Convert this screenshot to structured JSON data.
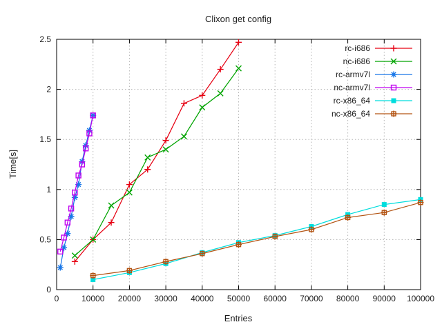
{
  "window": {
    "background": "#ffffff"
  },
  "chart_data": {
    "type": "line",
    "title": "Clixon get config",
    "xlabel": "Entries",
    "ylabel": "Time[s]",
    "xlim": [
      0,
      100000
    ],
    "ylim": [
      0,
      2.5
    ],
    "grid": true,
    "grid_color": "#b5b5b5",
    "axis_color": "#000000",
    "legend_position": "top-right-inside",
    "xticks": [
      {
        "value": 0,
        "label": "0"
      },
      {
        "value": 10000,
        "label": "10000"
      },
      {
        "value": 20000,
        "label": "20000"
      },
      {
        "value": 30000,
        "label": "30000"
      },
      {
        "value": 40000,
        "label": "40000"
      },
      {
        "value": 50000,
        "label": "50000"
      },
      {
        "value": 60000,
        "label": "60000"
      },
      {
        "value": 70000,
        "label": "70000"
      },
      {
        "value": 80000,
        "label": "80000"
      },
      {
        "value": 90000,
        "label": "90000"
      },
      {
        "value": 100000,
        "label": "100000"
      }
    ],
    "yticks": [
      {
        "value": 0,
        "label": "0"
      },
      {
        "value": 0.5,
        "label": "0.5"
      },
      {
        "value": 1,
        "label": "1"
      },
      {
        "value": 1.5,
        "label": "1.5"
      },
      {
        "value": 2,
        "label": "2"
      },
      {
        "value": 2.5,
        "label": "2.5"
      }
    ],
    "series": [
      {
        "name": "rc-i686",
        "color": "#e60012",
        "marker": "plus",
        "x": [
          5000,
          10000,
          15000,
          20000,
          25000,
          30000,
          35000,
          40000,
          45000,
          50000
        ],
        "y": [
          0.28,
          0.5,
          0.67,
          1.05,
          1.2,
          1.49,
          1.86,
          1.94,
          2.2,
          2.47
        ]
      },
      {
        "name": "nc-i686",
        "color": "#00a400",
        "marker": "cross",
        "x": [
          5000,
          10000,
          15000,
          20000,
          25000,
          30000,
          35000,
          40000,
          45000,
          50000
        ],
        "y": [
          0.34,
          0.5,
          0.84,
          0.97,
          1.32,
          1.4,
          1.53,
          1.82,
          1.96,
          2.21
        ]
      },
      {
        "name": "rc-armv7l",
        "color": "#1776e8",
        "marker": "asterisk",
        "x": [
          1000,
          2000,
          3000,
          4000,
          5000,
          6000,
          7000,
          8000,
          9000,
          10000
        ],
        "y": [
          0.22,
          0.42,
          0.56,
          0.73,
          0.92,
          1.05,
          1.28,
          1.44,
          1.59,
          1.74
        ]
      },
      {
        "name": "nc-armv7l",
        "color": "#c000f0",
        "marker": "square-open",
        "x": [
          1000,
          2000,
          3000,
          4000,
          5000,
          6000,
          7000,
          8000,
          9000,
          10000
        ],
        "y": [
          0.38,
          0.52,
          0.67,
          0.81,
          0.97,
          1.14,
          1.25,
          1.41,
          1.56,
          1.74
        ]
      },
      {
        "name": "rc-x86_64",
        "color": "#00dddd",
        "marker": "square-filled",
        "x": [
          10000,
          20000,
          30000,
          40000,
          50000,
          60000,
          70000,
          80000,
          90000,
          100000
        ],
        "y": [
          0.1,
          0.17,
          0.26,
          0.37,
          0.47,
          0.54,
          0.63,
          0.75,
          0.85,
          0.9
        ]
      },
      {
        "name": "nc-x86_64",
        "color": "#b35413",
        "marker": "square-plus",
        "x": [
          10000,
          20000,
          30000,
          40000,
          50000,
          60000,
          70000,
          80000,
          90000,
          100000
        ],
        "y": [
          0.14,
          0.19,
          0.28,
          0.36,
          0.45,
          0.53,
          0.6,
          0.72,
          0.77,
          0.87
        ]
      }
    ]
  }
}
